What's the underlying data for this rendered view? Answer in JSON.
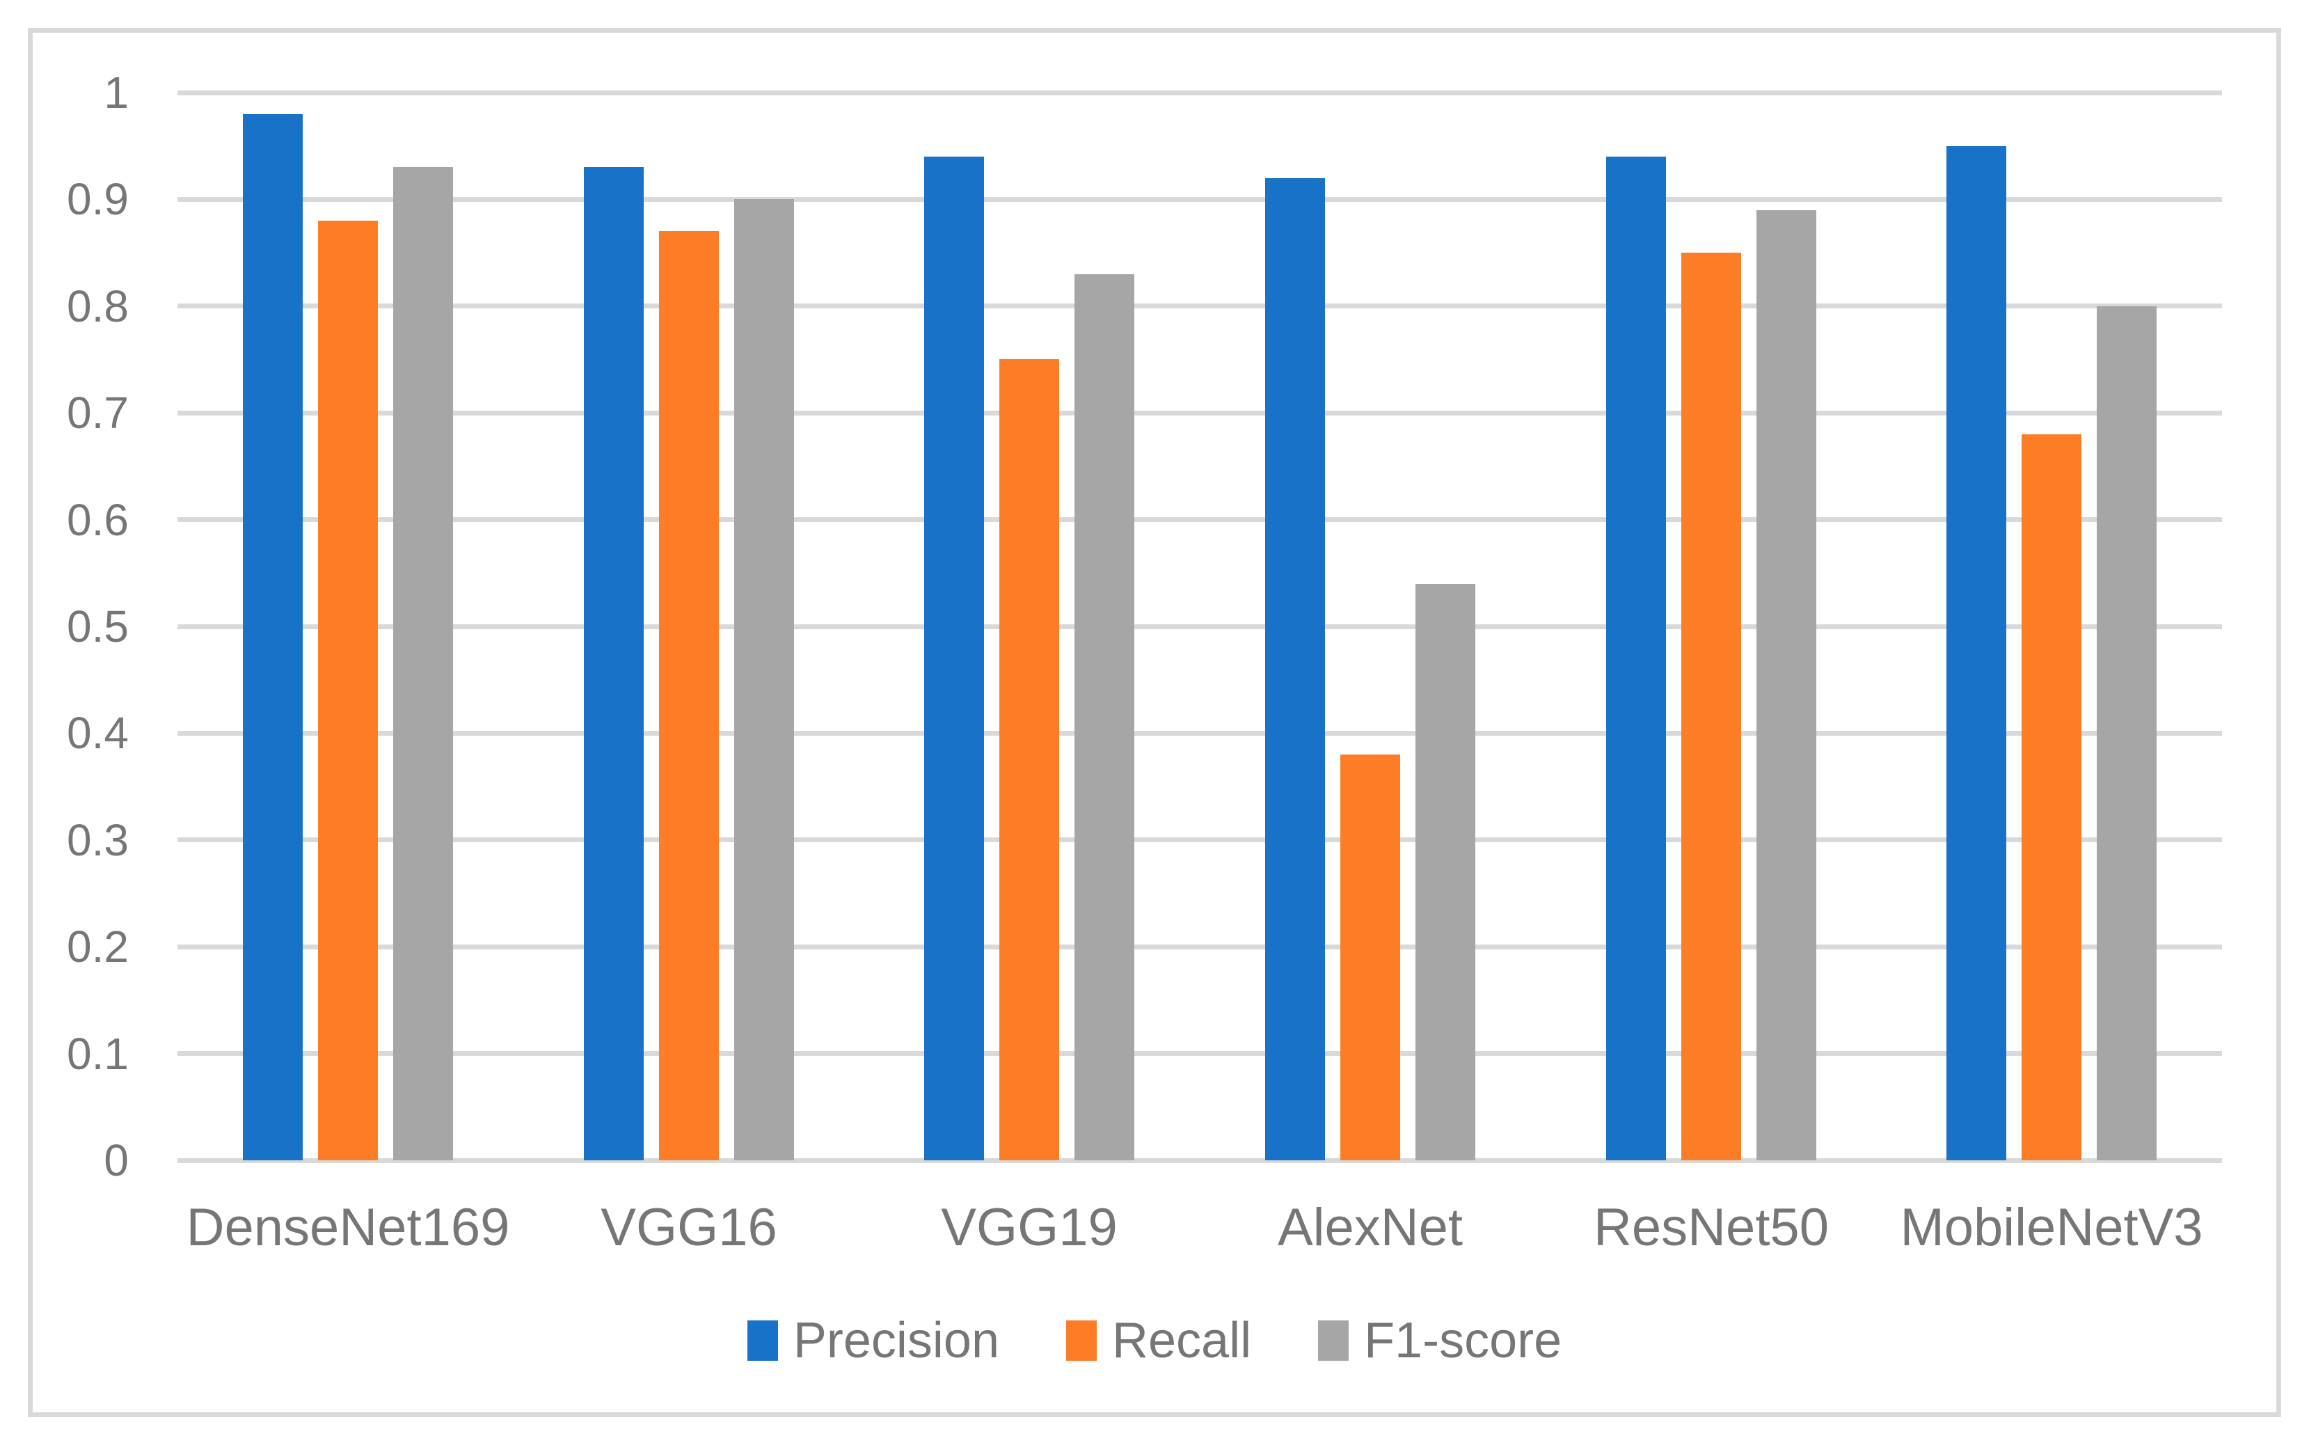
{
  "chart_data": {
    "type": "bar",
    "title": "",
    "xlabel": "",
    "ylabel": "",
    "categories": [
      "DenseNet169",
      "VGG16",
      "VGG19",
      "AlexNet",
      "ResNet50",
      "MobileNetV3"
    ],
    "series": [
      {
        "name": "Precision",
        "color": "#1772C8",
        "values": [
          0.98,
          0.93,
          0.94,
          0.92,
          0.94,
          0.95
        ]
      },
      {
        "name": "Recall",
        "color": "#FC7D26",
        "values": [
          0.88,
          0.87,
          0.75,
          0.38,
          0.85,
          0.68
        ]
      },
      {
        "name": "F1-score",
        "color": "#A6A6A6",
        "values": [
          0.93,
          0.9,
          0.83,
          0.54,
          0.89,
          0.8
        ]
      }
    ],
    "ylim": [
      0,
      1
    ],
    "yticks": [
      1,
      0.9,
      0.8,
      0.7,
      0.6,
      0.5,
      0.4,
      0.3,
      0.2,
      0.1,
      0
    ],
    "ytick_labels": [
      "1",
      "0.9",
      "0.8",
      "0.7",
      "0.6",
      "0.5",
      "0.4",
      "0.3",
      "0.2",
      "0.1",
      "0"
    ],
    "grid": true,
    "legend_position": "bottom",
    "gridline_color": "#D9D9D9",
    "frame_color": "#D9D9D9",
    "label_color": "#767676",
    "background_color": "#FFFFFF"
  }
}
